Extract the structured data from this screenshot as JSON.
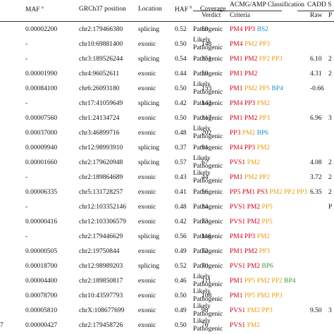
{
  "headers": {
    "maf": "MAF",
    "maf_sup": "a",
    "position": "GRCh37 position",
    "location": "Location",
    "haf": "HAF",
    "haf_sup": "b",
    "coverage": "Coverage",
    "acmg": "ACMG/AMP Classification",
    "verdict": "Verdict",
    "criteria": "Criteria",
    "cadd": "CADD S",
    "raw": "Raw",
    "p": "P"
  },
  "colors": {
    "red": "#d0021b",
    "orange": "#e89b0c",
    "blue": "#1e90c8",
    "green": "#3a9a3a"
  },
  "rows": [
    {
      "left": "",
      "maf": "0.00002200",
      "pos": "chr2:179466380",
      "loc": "splicing",
      "haf": "0.52",
      "cov": "69",
      "verdict": [
        "Pathogenic"
      ],
      "criteria": [
        {
          "t": "PM4",
          "c": "red"
        },
        {
          "t": "PP3",
          "c": "red"
        },
        {
          "t": "BS2",
          "c": "blue"
        }
      ],
      "raw": "",
      "p": ""
    },
    {
      "left": "",
      "maf": "-",
      "pos": "chr10:69881400",
      "loc": "exonic",
      "haf": "0.50",
      "cov": "148",
      "verdict": [
        "Likely",
        "Pathogenic"
      ],
      "criteria": [
        {
          "t": "PM4",
          "c": "red"
        },
        {
          "t": "PM2",
          "c": "orange"
        },
        {
          "t": "PP3",
          "c": "orange"
        }
      ],
      "raw": "",
      "p": ""
    },
    {
      "left": "",
      "maf": "-",
      "pos": "chr3:189526244",
      "loc": "splicing",
      "haf": "0.54",
      "cov": "351",
      "verdict": [
        "Pathogenic"
      ],
      "criteria": [
        {
          "t": "PM1",
          "c": "red"
        },
        {
          "t": "PM2",
          "c": "red"
        },
        {
          "t": "PP2",
          "c": "orange"
        },
        {
          "t": "PP3",
          "c": "orange"
        }
      ],
      "raw": "6.10",
      "p": "2"
    },
    {
      "left": "",
      "maf": "0.00001990",
      "pos": "chr4:96052611",
      "loc": "exonic",
      "haf": "0.44",
      "cov": "59",
      "verdict": [
        "Pathogenic"
      ],
      "criteria": [
        {
          "t": "PM1",
          "c": "red"
        },
        {
          "t": "PM2",
          "c": "red"
        }
      ],
      "raw": "4.31",
      "p": "2"
    },
    {
      "left": "",
      "maf": "0.00084100",
      "pos": "chr6:26093180",
      "loc": "exonic",
      "haf": "0.50",
      "cov": "153",
      "verdict": [
        "Likely",
        "Pathogenic"
      ],
      "criteria": [
        {
          "t": "PM1",
          "c": "red"
        },
        {
          "t": "PM2",
          "c": "orange"
        },
        {
          "t": "PP5",
          "c": "orange"
        },
        {
          "t": "BP4",
          "c": "blue"
        }
      ],
      "raw": "-0.66",
      "p": ""
    },
    {
      "left": "",
      "maf": "-",
      "pos": "chr17:41059649",
      "loc": "splicing",
      "haf": "0.42",
      "cov": "143",
      "verdict": [
        "Pathogenic"
      ],
      "criteria": [
        {
          "t": "PM4",
          "c": "red"
        },
        {
          "t": "PP3",
          "c": "red"
        },
        {
          "t": "PM2",
          "c": "orange"
        }
      ],
      "raw": "",
      "p": ""
    },
    {
      "left": "",
      "maf": "0.00007560",
      "pos": "chr1:24134724",
      "loc": "exonic",
      "haf": "0.50",
      "cov": "317",
      "verdict": [
        "Pathogenic"
      ],
      "criteria": [
        {
          "t": "PM1",
          "c": "red"
        },
        {
          "t": "PM2",
          "c": "red"
        },
        {
          "t": "PP3",
          "c": "orange"
        }
      ],
      "raw": "6.96",
      "p": "3"
    },
    {
      "left": "",
      "maf": "0.00037000",
      "pos": "chr3:46899716",
      "loc": "exonic",
      "haf": "0.48",
      "cov": "202",
      "verdict": [
        "Likely",
        "Pathogenic"
      ],
      "criteria": [
        {
          "t": "PP3",
          "c": "red"
        },
        {
          "t": "PM2",
          "c": "orange"
        },
        {
          "t": "BP6",
          "c": "blue"
        }
      ],
      "raw": "",
      "p": ""
    },
    {
      "left": "",
      "maf": "0.00009940",
      "pos": "chr12:98993910",
      "loc": "splicing",
      "haf": "0.37",
      "cov": "91",
      "verdict": [
        "Pathogenic"
      ],
      "criteria": [
        {
          "t": "PM4",
          "c": "red"
        },
        {
          "t": "PP3",
          "c": "red"
        },
        {
          "t": "PM2",
          "c": "orange"
        }
      ],
      "raw": "",
      "p": ""
    },
    {
      "left": "",
      "maf": "0.00001660",
      "pos": "chr2:179620948",
      "loc": "splicing",
      "haf": "0.57",
      "cov": "67",
      "verdict": [
        "Likely",
        "Pathogenic"
      ],
      "criteria": [
        {
          "t": "PVS1",
          "c": "red"
        },
        {
          "t": "PM2",
          "c": "orange"
        }
      ],
      "raw": "4.08",
      "p": "2"
    },
    {
      "left": "",
      "maf": "-",
      "pos": "chr2:189864689",
      "loc": "exonic",
      "haf": "0.43",
      "cov": "44",
      "verdict": [
        "Likely",
        "Pathogenic"
      ],
      "criteria": [
        {
          "t": "PM1",
          "c": "red"
        },
        {
          "t": "PM2",
          "c": "orange"
        },
        {
          "t": "PP2",
          "c": "orange"
        }
      ],
      "raw": "3.72",
      "p": "2"
    },
    {
      "left": "",
      "maf": "0.00006335",
      "pos": "chr5:131728257",
      "loc": "exonic",
      "haf": "0.41",
      "cov": "56",
      "verdict": [
        "Pathogenic"
      ],
      "criteria": [
        {
          "t": "PP5",
          "c": "red"
        },
        {
          "t": "PM1",
          "c": "red"
        },
        {
          "t": "PS3",
          "c": "red"
        },
        {
          "t": "PM2",
          "c": "orange"
        },
        {
          "t": "PP2",
          "c": "orange"
        },
        {
          "t": "PP3",
          "c": "orange"
        }
      ],
      "raw": "6.35",
      "p": "2"
    },
    {
      "left": "",
      "maf": "-",
      "pos": "chr12:103352146",
      "loc": "exonic",
      "haf": "0.48",
      "cov": "34",
      "verdict": [
        "Pathogenic"
      ],
      "criteria": [
        {
          "t": "PVS1",
          "c": "red"
        },
        {
          "t": "PM2",
          "c": "red"
        },
        {
          "t": "PP5",
          "c": "orange"
        }
      ],
      "raw": "",
      "p": "P"
    },
    {
      "left": "",
      "maf": "0.00000416",
      "pos": "chr12:103306579",
      "loc": "exonic",
      "haf": "0.42",
      "cov": "73",
      "verdict": [
        "Pathogenic"
      ],
      "criteria": [
        {
          "t": "PVS1",
          "c": "red"
        },
        {
          "t": "PM2",
          "c": "red"
        },
        {
          "t": "PP5",
          "c": "orange"
        }
      ],
      "raw": "",
      "p": ""
    },
    {
      "left": "",
      "maf": "-",
      "pos": "chr2:179446629",
      "loc": "splicing",
      "haf": "0.56",
      "cov": "116",
      "verdict": [
        "Pathogenic"
      ],
      "criteria": [
        {
          "t": "PM4",
          "c": "red"
        },
        {
          "t": "PP3",
          "c": "red"
        },
        {
          "t": "PM2",
          "c": "orange"
        }
      ],
      "raw": "",
      "p": ""
    },
    {
      "left": "",
      "maf": "0.00000505",
      "pos": "chr2:19750844",
      "loc": "exonic",
      "haf": "0.49",
      "cov": "72",
      "verdict": [
        "Pathogenic"
      ],
      "criteria": [
        {
          "t": "PM1",
          "c": "red"
        },
        {
          "t": "PM2",
          "c": "red"
        },
        {
          "t": "PP3",
          "c": "orange"
        }
      ],
      "raw": "",
      "p": ""
    },
    {
      "left": "",
      "maf": "0.00018700",
      "pos": "chr12:98989203",
      "loc": "splicing",
      "haf": "0.52",
      "cov": "70",
      "verdict": [
        "Pathogenic"
      ],
      "criteria": [
        {
          "t": "PVS1",
          "c": "red"
        },
        {
          "t": "PM2",
          "c": "red"
        },
        {
          "t": "BP6",
          "c": "green"
        }
      ],
      "raw": "",
      "p": ""
    },
    {
      "left": "",
      "maf": "0.00004400",
      "pos": "chr2:189850817",
      "loc": "exonic",
      "haf": "0.46",
      "cov": "111",
      "verdict": [
        "Likely",
        "Pathogenic"
      ],
      "criteria": [
        {
          "t": "PM1",
          "c": "red"
        },
        {
          "t": "PP5",
          "c": "orange"
        },
        {
          "t": "PM2",
          "c": "orange"
        },
        {
          "t": "PP2",
          "c": "orange"
        },
        {
          "t": "BP4",
          "c": "green"
        }
      ],
      "raw": "",
      "p": ""
    },
    {
      "left": "",
      "maf": "0.00078700",
      "pos": "chr10:43597793",
      "loc": "exonic",
      "haf": "0.50",
      "cov": "108",
      "verdict": [
        "Likely",
        "Pathogenic"
      ],
      "criteria": [
        {
          "t": "PM1",
          "c": "red"
        },
        {
          "t": "PP5",
          "c": "orange"
        },
        {
          "t": "PM2",
          "c": "orange"
        },
        {
          "t": "PP3",
          "c": "orange"
        }
      ],
      "raw": "",
      "p": ""
    },
    {
      "left": "",
      "maf": "0.00005810",
      "pos": "chrX:108677699",
      "loc": "exonic",
      "haf": "0.49",
      "cov": "98",
      "verdict": [
        "Likely",
        "Pathogenic"
      ],
      "criteria": [
        {
          "t": "PVS1",
          "c": "red"
        },
        {
          "t": "PM2",
          "c": "orange"
        },
        {
          "t": "PP3",
          "c": "orange"
        }
      ],
      "raw": "9.50",
      "p": "3"
    },
    {
      "left": "7",
      "maf": "0.00000427",
      "pos": "chr2:179458726",
      "loc": "exonic",
      "haf": "0.50",
      "cov": "76",
      "verdict": [
        "Likely",
        "Pathogenic"
      ],
      "criteria": [
        {
          "t": "PVS1",
          "c": "red"
        },
        {
          "t": "PM2",
          "c": "orange"
        }
      ],
      "raw": "",
      "p": ""
    }
  ]
}
